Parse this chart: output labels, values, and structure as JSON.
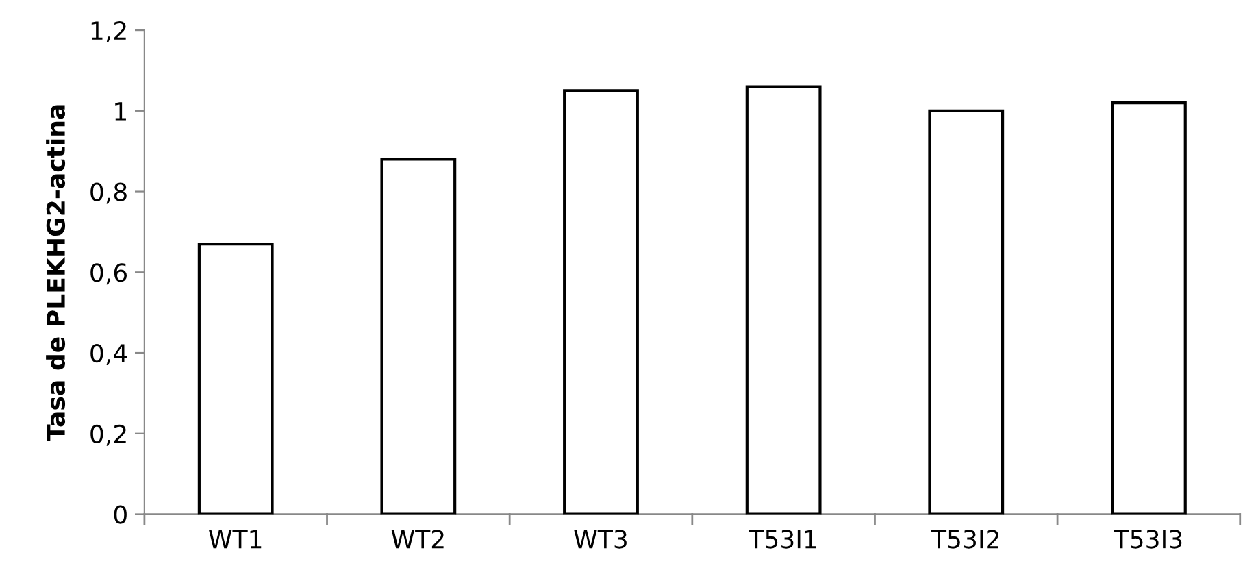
{
  "chart_data": {
    "type": "bar",
    "ylabel": "Tasa de PLEKHG2-actina",
    "categories": [
      "WT1",
      "WT2",
      "WT3",
      "T53I1",
      "T53I2",
      "T53I3"
    ],
    "values": [
      0.67,
      0.88,
      1.05,
      1.06,
      1.0,
      1.02
    ],
    "color": "#ffffff",
    "ylim": [
      0,
      1.2
    ],
    "yticks": [
      0,
      {
        "value": 0.2,
        "label": "0,2"
      },
      {
        "value": 0.4,
        "label": "0,4"
      },
      {
        "value": 0.6,
        "label": "0,6"
      },
      {
        "value": 0.8,
        "label": "0,8"
      },
      1,
      {
        "value": 1.2,
        "label": "1,2"
      }
    ],
    "grid": false,
    "legend": false
  }
}
